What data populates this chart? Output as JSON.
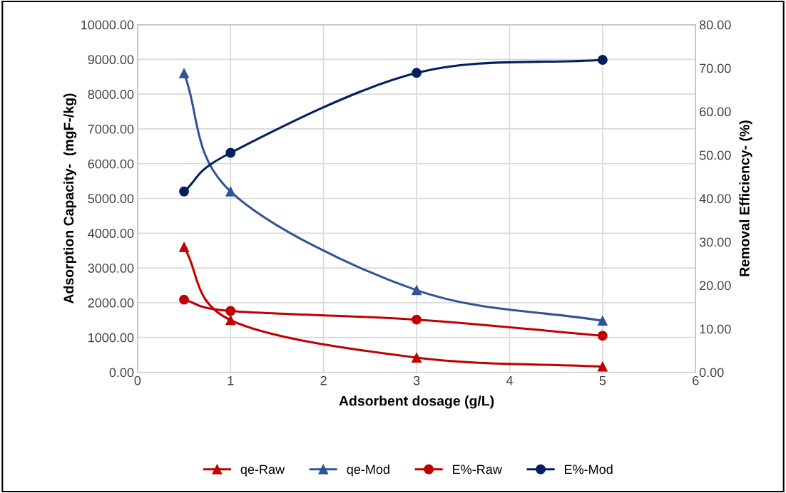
{
  "chart_data": {
    "type": "line",
    "xlabel": "Adsorbent dosage (g/L)",
    "ylabel": "Adsorption Capacity-  (mgF-/kg)",
    "y2label": "Removal Efficiency- (%)",
    "x": [
      0.5,
      1,
      3,
      5
    ],
    "xlim": [
      0,
      6
    ],
    "xticks": [
      0,
      1,
      2,
      3,
      4,
      5,
      6
    ],
    "ylim": [
      0,
      10000
    ],
    "yticks": [
      {
        "value": 0,
        "label": "0.00"
      },
      {
        "value": 1000,
        "label": "1000.00"
      },
      {
        "value": 2000,
        "label": "2000.00"
      },
      {
        "value": 3000,
        "label": "3000.00"
      },
      {
        "value": 4000,
        "label": "4000.00"
      },
      {
        "value": 5000,
        "label": "5000.00"
      },
      {
        "value": 6000,
        "label": "6000.00"
      },
      {
        "value": 7000,
        "label": "7000.00"
      },
      {
        "value": 8000,
        "label": "8000.00"
      },
      {
        "value": 9000,
        "label": "9000.00"
      },
      {
        "value": 10000,
        "label": "10000.00"
      }
    ],
    "y2lim": [
      0,
      80
    ],
    "y2ticks": [
      {
        "value": 0,
        "label": "0.00"
      },
      {
        "value": 10,
        "label": "10.00"
      },
      {
        "value": 20,
        "label": "20.00"
      },
      {
        "value": 30,
        "label": "30.00"
      },
      {
        "value": 40,
        "label": "40.00"
      },
      {
        "value": 50,
        "label": "50.00"
      },
      {
        "value": 60,
        "label": "60.00"
      },
      {
        "value": 70,
        "label": "70.00"
      },
      {
        "value": 80,
        "label": "80.00"
      }
    ],
    "grid": true,
    "legend": "bottom",
    "line_style": "solid",
    "series": [
      {
        "name": "qe-Raw",
        "color": "#c00000",
        "marker": "triangle",
        "values": [
          3600,
          1500,
          420,
          160
        ]
      },
      {
        "name": "qe-Mod",
        "color": "#2f5597",
        "marker": "triangle",
        "values": [
          8600,
          5200,
          2360,
          1480
        ]
      },
      {
        "name": "E%-Raw",
        "color": "#c00000",
        "marker": "circle",
        "axis": "y2",
        "values": [
          16.7,
          14.1,
          12.1,
          8.4
        ]
      },
      {
        "name": "E%-Mod",
        "color": "#002060",
        "marker": "circle",
        "axis": "y2",
        "values": [
          41.6,
          50.5,
          68.9,
          71.9
        ]
      }
    ]
  }
}
